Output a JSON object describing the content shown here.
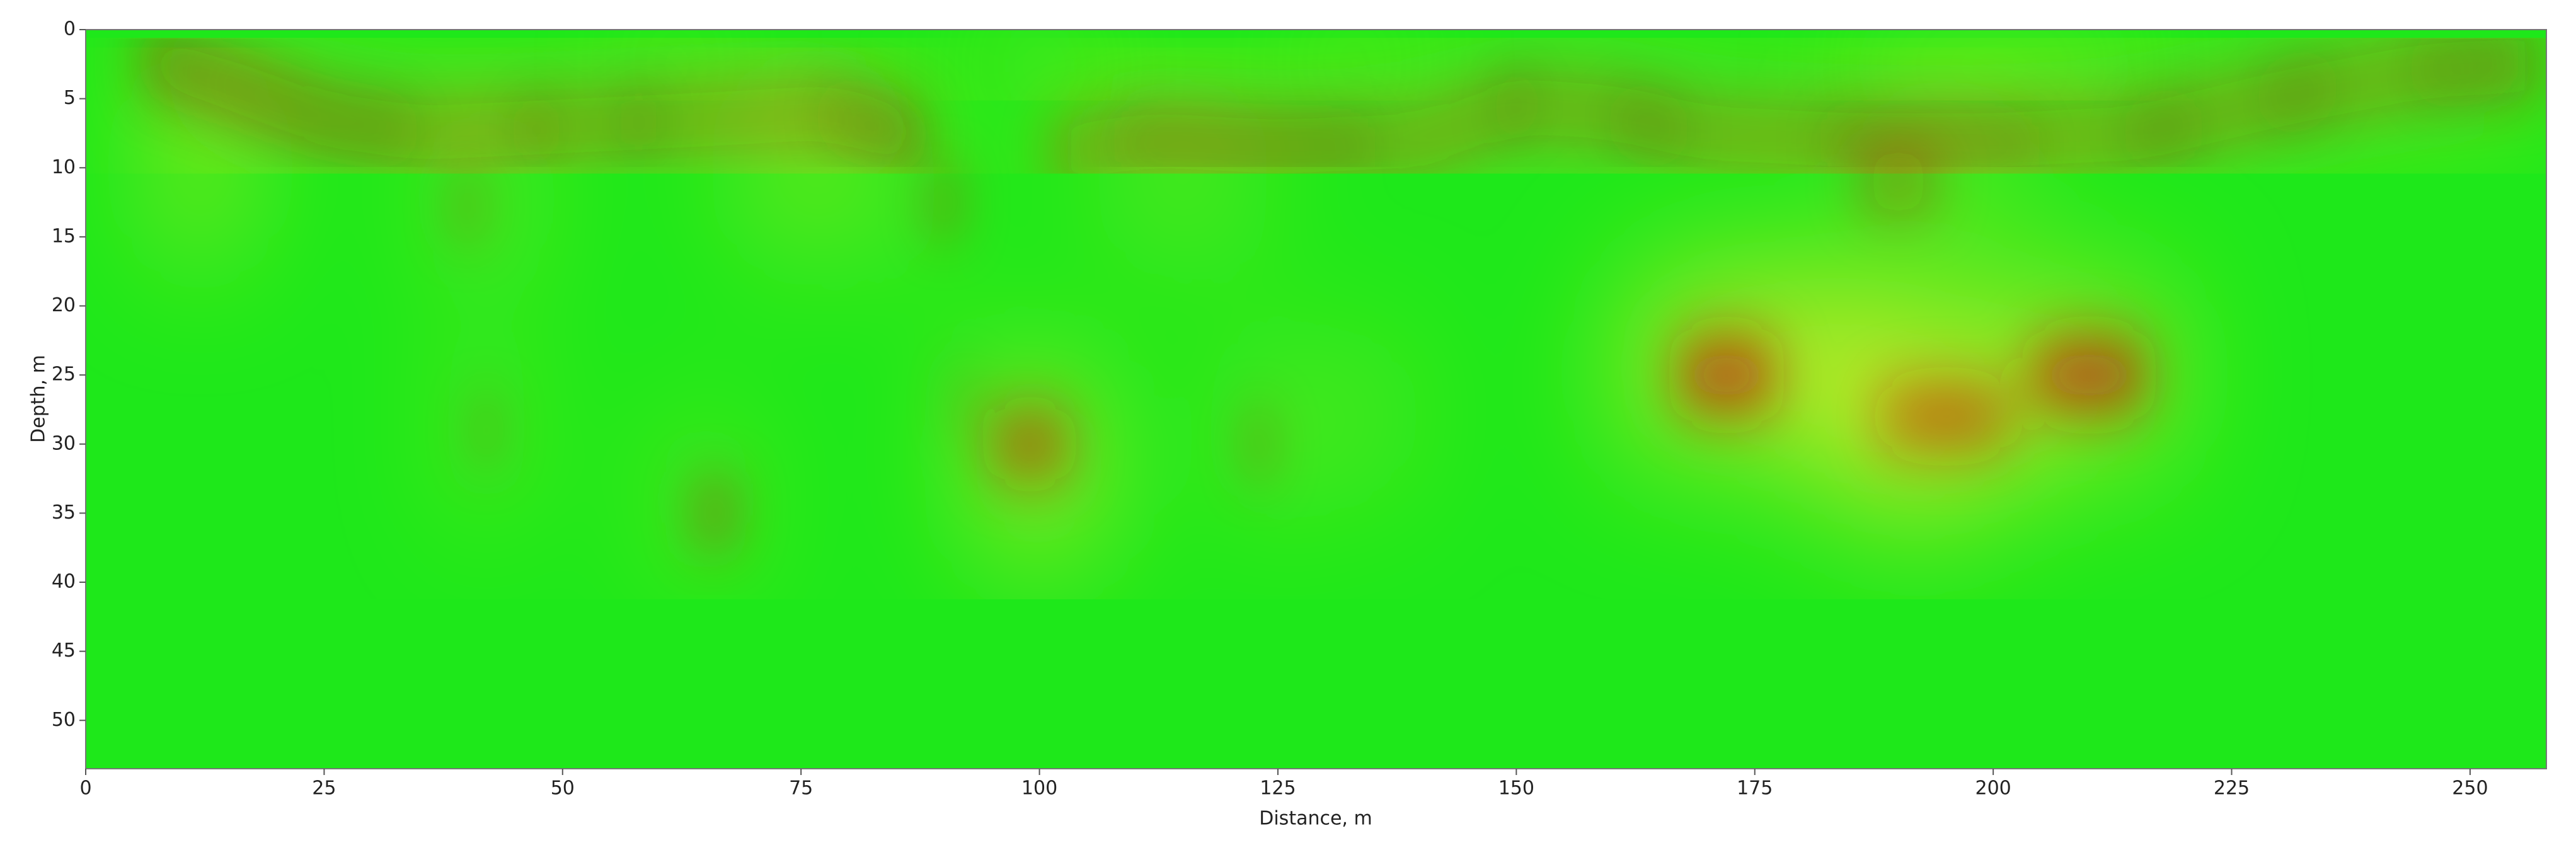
{
  "chart_data": {
    "type": "radargram",
    "xlabel": "Distance, m",
    "ylabel": "Depth, m",
    "xlim": [
      0,
      258
    ],
    "ylim": [
      0,
      53.5
    ],
    "y_inverted": true,
    "xticks": [
      0,
      25,
      50,
      75,
      100,
      125,
      150,
      175,
      200,
      225,
      250
    ],
    "yticks": [
      0,
      5,
      10,
      15,
      20,
      25,
      30,
      35,
      40,
      45,
      50
    ],
    "background": "#1ee81a"
  }
}
